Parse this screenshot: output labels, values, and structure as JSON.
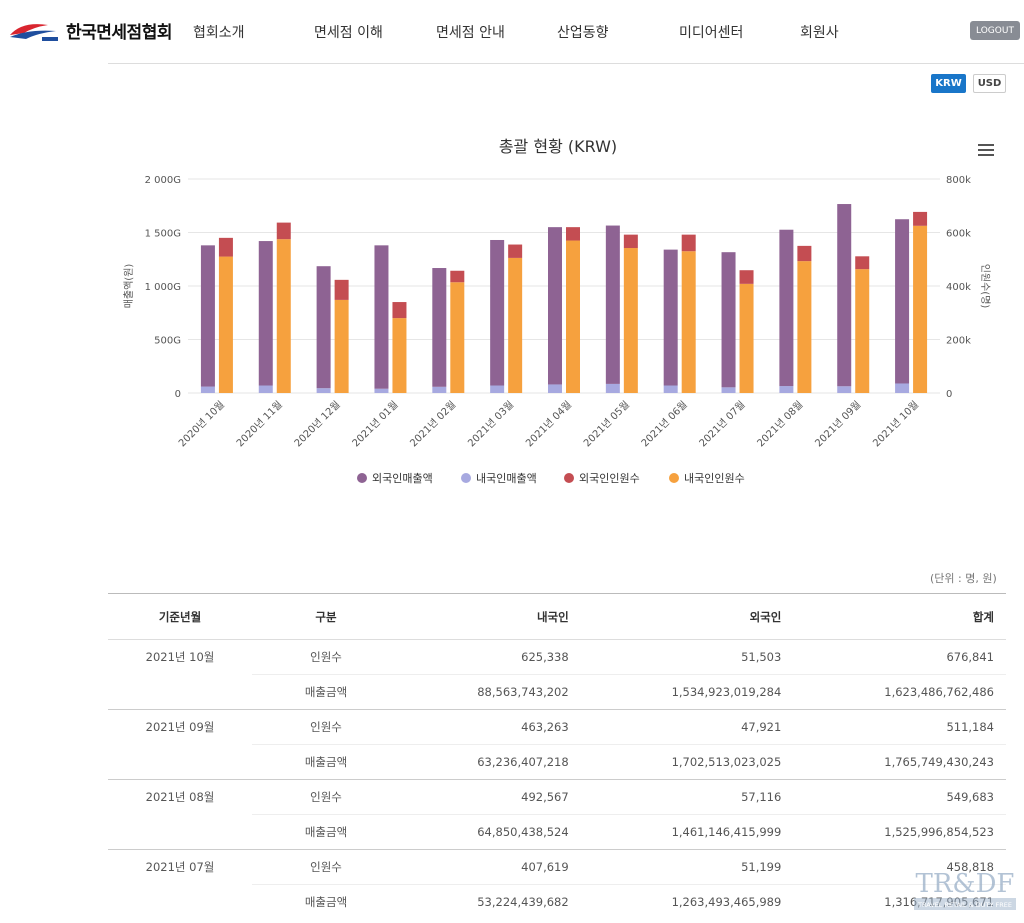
{
  "header": {
    "logo_text": "한국면세점협회",
    "nav": [
      "협회소개",
      "면세점 이해",
      "면세점 안내",
      "산업동향",
      "미디어센터",
      "회원사"
    ],
    "logout_label": "LOGOUT"
  },
  "currency": {
    "krw_label": "KRW",
    "usd_label": "USD",
    "selected": "KRW"
  },
  "colors": {
    "foreign_sales": "#8e6393",
    "domestic_sales": "#a7a9e0",
    "foreign_visitors": "#c44d52",
    "domestic_visitors": "#f6a13e",
    "accent": "#1976c9"
  },
  "chart_data": {
    "type": "bar",
    "title": "총괄 현황 (KRW)",
    "ylabel": "매출액(원)",
    "y2label": "인원수(명)",
    "ylim": [
      0,
      2000
    ],
    "y2lim": [
      0,
      800
    ],
    "yticks": [
      "0",
      "500G",
      "1 000G",
      "1 500G",
      "2 000G"
    ],
    "y2ticks": [
      "0",
      "200k",
      "400k",
      "600k",
      "800k"
    ],
    "categories": [
      "2020년 10월",
      "2020년 11월",
      "2020년 12월",
      "2021년 01월",
      "2021년 02월",
      "2021년 03월",
      "2021년 04월",
      "2021년 05월",
      "2021년 06월",
      "2021년 07월",
      "2021년 08월",
      "2021년 09월",
      "2021년 10월"
    ],
    "series": [
      {
        "name": "외국인매출액",
        "axis": "left",
        "stack": "sales",
        "values": [
          1320,
          1350,
          1140,
          1340,
          1110,
          1360,
          1470,
          1480,
          1270,
          1263,
          1461,
          1703,
          1535
        ]
      },
      {
        "name": "내국인매출액",
        "axis": "left",
        "stack": "sales",
        "values": [
          60,
          70,
          45,
          40,
          58,
          70,
          80,
          85,
          70,
          53,
          65,
          63,
          89
        ]
      },
      {
        "name": "외국인인원수",
        "axis": "right",
        "stack": "visitors",
        "values": [
          70,
          62,
          75,
          60,
          43,
          50,
          50,
          50,
          62,
          51,
          57,
          48,
          52
        ]
      },
      {
        "name": "내국인인원수",
        "axis": "right",
        "stack": "visitors",
        "values": [
          510,
          575,
          348,
          280,
          414,
          505,
          570,
          542,
          530,
          408,
          493,
          463,
          625
        ]
      }
    ],
    "legend_position": "bottom",
    "grid": true
  },
  "table": {
    "unit_note": "(단위 : 명, 원)",
    "headers": [
      "기준년월",
      "구분",
      "내국인",
      "외국인",
      "합계"
    ],
    "rows": [
      {
        "month": "2021년 10월",
        "visitors_label": "인원수",
        "visitors": [
          "625,338",
          "51,503",
          "676,841"
        ],
        "sales_label": "매출금액",
        "sales": [
          "88,563,743,202",
          "1,534,923,019,284",
          "1,623,486,762,486"
        ]
      },
      {
        "month": "2021년 09월",
        "visitors_label": "인원수",
        "visitors": [
          "463,263",
          "47,921",
          "511,184"
        ],
        "sales_label": "매출금액",
        "sales": [
          "63,236,407,218",
          "1,702,513,023,025",
          "1,765,749,430,243"
        ]
      },
      {
        "month": "2021년 08월",
        "visitors_label": "인원수",
        "visitors": [
          "492,567",
          "57,116",
          "549,683"
        ],
        "sales_label": "매출금액",
        "sales": [
          "64,850,438,524",
          "1,461,146,415,999",
          "1,525,996,854,523"
        ]
      },
      {
        "month": "2021년 07월",
        "visitors_label": "인원수",
        "visitors": [
          "407,619",
          "51,199",
          "458,818"
        ],
        "sales_label": "매출금액",
        "sales": [
          "53,224,439,682",
          "1,263,493,465,989",
          "1,316,717,905,671"
        ]
      }
    ]
  },
  "watermark": {
    "text": "TR&DF",
    "subtext": "TRAVEL RETAIL & DUTY FREE"
  }
}
